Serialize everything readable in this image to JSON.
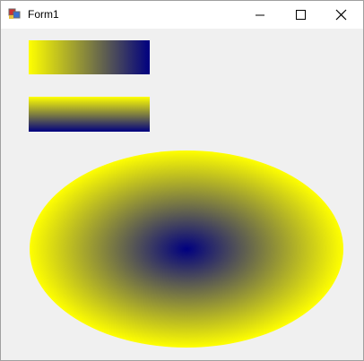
{
  "window": {
    "title": "Form1"
  }
}
